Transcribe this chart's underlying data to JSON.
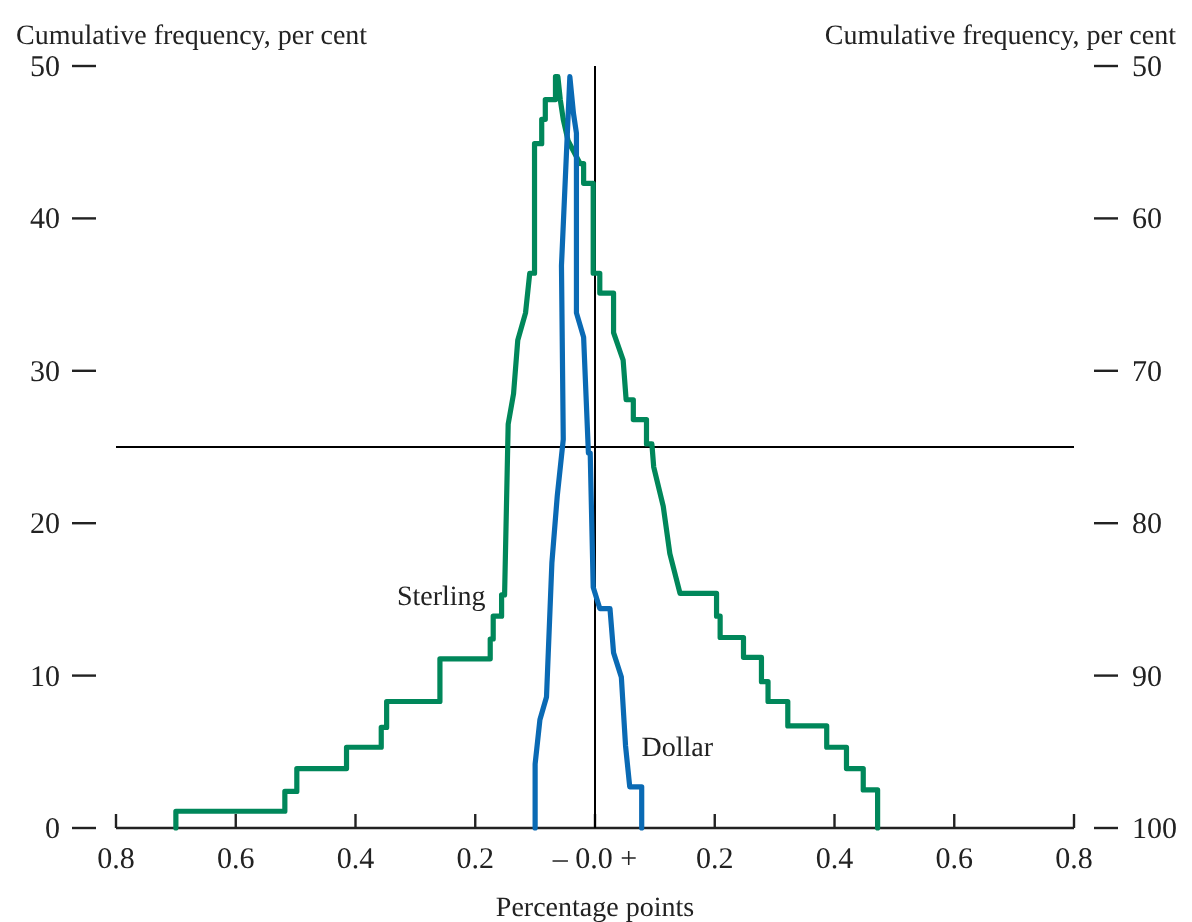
{
  "chart_data": {
    "type": "line",
    "xlabel": "Percentage points",
    "ylabel": "Cumulative frequency, per cent",
    "y2label": "Cumulative frequency, per cent",
    "xlim": [
      -0.8,
      0.8
    ],
    "xticks": [
      {
        "value": -0.8,
        "label": "0.8"
      },
      {
        "value": -0.6,
        "label": "0.6"
      },
      {
        "value": -0.4,
        "label": "0.4"
      },
      {
        "value": -0.2,
        "label": "0.2"
      },
      {
        "value": 0,
        "label": "– 0.0 +"
      },
      0.2,
      0.4,
      0.6,
      0.8
    ],
    "ylim": [
      0,
      50
    ],
    "yticks": [
      0,
      10,
      20,
      30,
      40,
      50
    ],
    "y2lim": [
      100,
      50
    ],
    "y2ticks": [
      100,
      90,
      80,
      70,
      60,
      50
    ],
    "ref_lines": [
      {
        "axis": "y",
        "value": 25,
        "color": "#000000"
      },
      {
        "axis": "x",
        "value": 0,
        "color": "#000000"
      }
    ],
    "grid": false,
    "legend": false,
    "marker": "none",
    "line_style": "solid",
    "series": [
      {
        "name": "Sterling",
        "color": "#00875a",
        "x": [
          -0.7,
          -0.7,
          -0.518,
          -0.518,
          -0.498,
          -0.498,
          -0.415,
          -0.415,
          -0.357,
          -0.357,
          -0.348,
          -0.348,
          -0.259,
          -0.259,
          -0.175,
          -0.175,
          -0.17,
          -0.17,
          -0.156,
          -0.156,
          -0.151,
          -0.145,
          -0.136,
          -0.129,
          -0.116,
          -0.109,
          -0.101,
          -0.101,
          -0.089,
          -0.089,
          -0.083,
          -0.083,
          -0.066,
          -0.066,
          -0.062,
          -0.058,
          -0.053,
          -0.045,
          -0.025,
          -0.019,
          -0.019,
          -0.003,
          -0.003,
          0.008,
          0.008,
          0.031,
          0.031,
          0.047,
          0.052,
          0.064,
          0.064,
          0.086,
          0.086,
          0.095,
          0.098,
          0.114,
          0.125,
          0.142,
          0.142,
          0.203,
          0.203,
          0.209,
          0.209,
          0.248,
          0.248,
          0.278,
          0.278,
          0.289,
          0.289,
          0.322,
          0.322,
          0.387,
          0.387,
          0.42,
          0.42,
          0.448,
          0.448,
          0.472,
          0.472
        ],
        "values": [
          0,
          1.1,
          1.1,
          2.4,
          2.4,
          3.9,
          3.9,
          5.3,
          5.3,
          6.6,
          6.6,
          8.3,
          8.3,
          11.1,
          11.1,
          12.4,
          12.4,
          13.9,
          13.9,
          15.3,
          15.3,
          26.5,
          28.5,
          32.0,
          33.8,
          36.4,
          36.4,
          44.9,
          44.9,
          46.5,
          46.5,
          47.8,
          47.8,
          49.3,
          49.3,
          47.8,
          46.5,
          45.1,
          43.6,
          43.6,
          42.3,
          42.3,
          36.4,
          36.4,
          35.1,
          35.1,
          32.5,
          30.7,
          28.1,
          28.1,
          26.8,
          26.8,
          25.2,
          25.2,
          23.7,
          21.1,
          18.0,
          15.4,
          15.4,
          15.4,
          13.9,
          13.9,
          12.5,
          12.5,
          11.2,
          11.2,
          9.6,
          9.6,
          8.3,
          8.3,
          6.7,
          6.7,
          5.3,
          5.3,
          3.9,
          3.9,
          2.5,
          2.5,
          0
        ]
      },
      {
        "name": "Dollar",
        "color": "#0a6ab4",
        "x": [
          -0.1,
          -0.1,
          -0.092,
          -0.081,
          -0.072,
          -0.063,
          -0.053,
          -0.056,
          -0.042,
          -0.036,
          -0.031,
          -0.031,
          -0.019,
          -0.011,
          -0.008,
          -0.003,
          0.008,
          0.025,
          0.031,
          0.044,
          0.051,
          0.058,
          0.078,
          0.078
        ],
        "values": [
          0,
          4.2,
          7.1,
          8.6,
          17.4,
          21.8,
          25.5,
          36.9,
          49.3,
          46.9,
          45.6,
          33.8,
          32.2,
          24.6,
          24.6,
          15.8,
          14.4,
          14.4,
          11.5,
          9.9,
          5.4,
          2.7,
          2.7,
          0
        ]
      }
    ]
  }
}
